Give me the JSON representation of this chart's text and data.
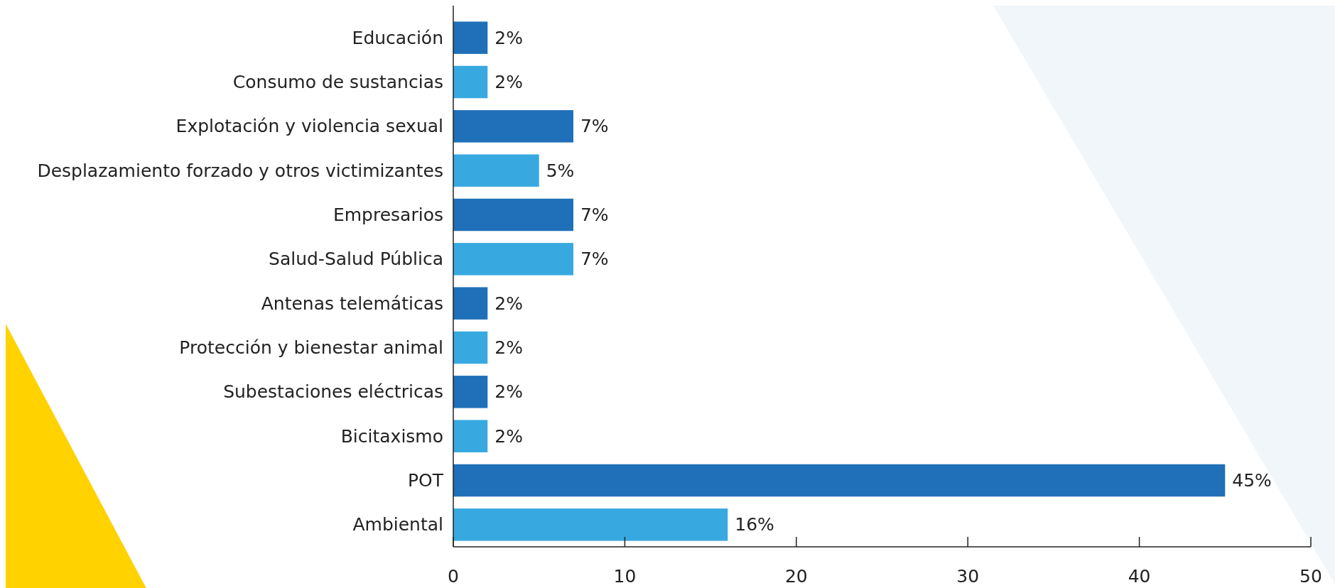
{
  "chart_data": {
    "type": "bar",
    "orientation": "horizontal",
    "categories": [
      "Educación",
      "Consumo de sustancias",
      "Explotación y violencia sexual",
      "Desplazamiento forzado y otros victimizantes",
      "Empresarios",
      "Salud-Salud Pública",
      "Antenas telemáticas",
      "Protección y bienestar animal",
      "Subestaciones eléctricas",
      "Bicitaxismo",
      "POT",
      "Ambiental"
    ],
    "values": [
      2,
      2,
      7,
      5,
      7,
      7,
      2,
      2,
      2,
      2,
      45,
      16
    ],
    "colors": [
      "#1f70b8",
      "#38a9e0",
      "#1f70b8",
      "#38a9e0",
      "#1f70b8",
      "#38a9e0",
      "#1f70b8",
      "#38a9e0",
      "#1f70b8",
      "#38a9e0",
      "#1f70b8",
      "#38a9e0"
    ],
    "value_labels": [
      "2%",
      "2%",
      "7%",
      "5%",
      "7%",
      "7%",
      "2%",
      "2%",
      "2%",
      "2%",
      "45%",
      "16%"
    ],
    "xlim": [
      0,
      50
    ],
    "xticks": [
      0,
      10,
      20,
      30,
      40,
      50
    ]
  }
}
